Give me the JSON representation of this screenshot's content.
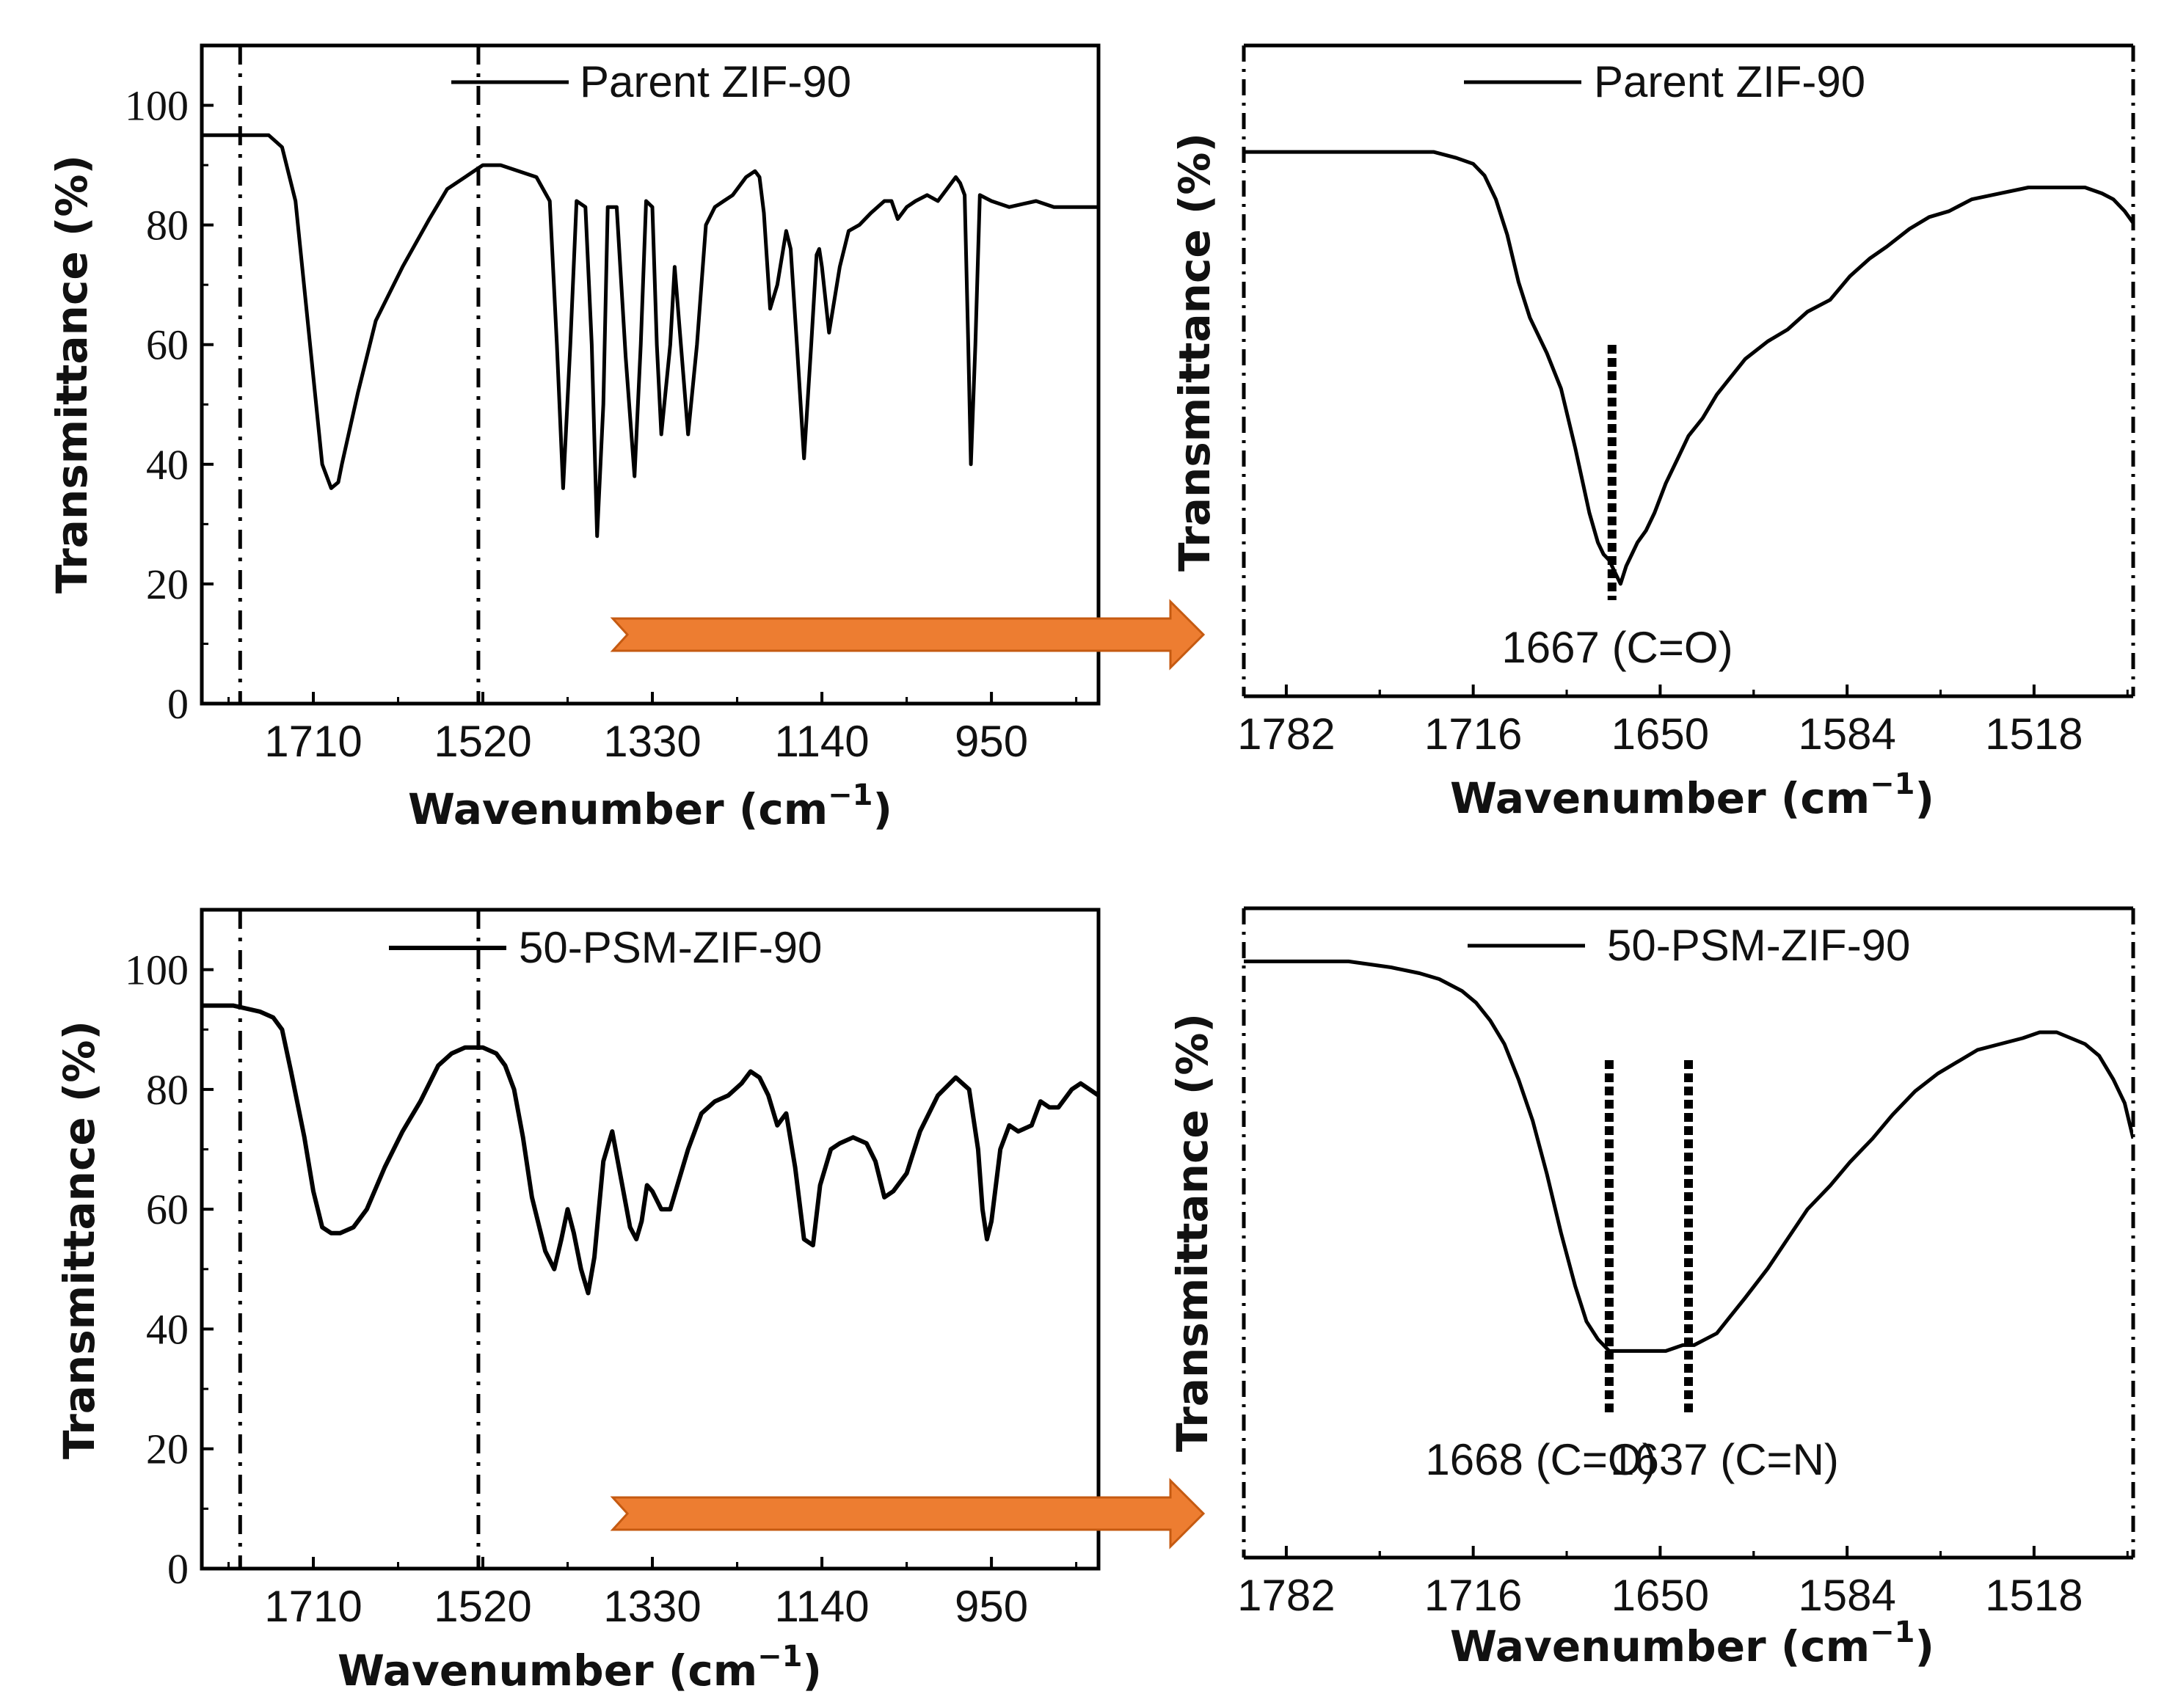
{
  "colors": {
    "line": "#000000",
    "arrow": "#ED7D31",
    "arrow_stroke": "#C55A11"
  },
  "chart_data": [
    {
      "id": "a",
      "type": "line",
      "xlabel": "Wavenumber (cm",
      "xlabel_sup": "−1",
      "xlabel_close": ")",
      "ylabel": "Transmittance (%)",
      "xlim": [
        1835,
        830
      ],
      "ylim": [
        0,
        110
      ],
      "xticks": [
        1710,
        1520,
        1330,
        1140,
        950
      ],
      "yticks": [
        0,
        20,
        40,
        60,
        80,
        100
      ],
      "vlines": [
        1792,
        1525
      ],
      "legend": "Parent ZIF-90",
      "series": [
        {
          "name": "Parent ZIF-90",
          "x": [
            1835,
            1795,
            1760,
            1745,
            1730,
            1715,
            1700,
            1690,
            1682,
            1678,
            1672,
            1660,
            1640,
            1610,
            1580,
            1560,
            1540,
            1520,
            1500,
            1480,
            1460,
            1445,
            1437,
            1430,
            1422,
            1415,
            1405,
            1398,
            1392,
            1385,
            1380,
            1370,
            1360,
            1350,
            1343,
            1337,
            1330,
            1325,
            1320,
            1310,
            1305,
            1298,
            1290,
            1280,
            1270,
            1260,
            1250,
            1240,
            1225,
            1215,
            1210,
            1205,
            1198,
            1190,
            1180,
            1175,
            1168,
            1160,
            1152,
            1146,
            1143,
            1140,
            1132,
            1120,
            1110,
            1098,
            1085,
            1070,
            1062,
            1055,
            1045,
            1035,
            1022,
            1010,
            1000,
            990,
            985,
            980,
            976,
            973,
            968,
            963,
            950,
            930,
            900,
            880,
            860,
            830
          ],
          "y": [
            95,
            95,
            95,
            93,
            84,
            62,
            40,
            36,
            37,
            40,
            44,
            52,
            64,
            73,
            81,
            86,
            88,
            90,
            90,
            89,
            88,
            84,
            60,
            36,
            60,
            84,
            83,
            60,
            28,
            50,
            83,
            83,
            58,
            38,
            60,
            84,
            83,
            60,
            45,
            60,
            73,
            60,
            45,
            60,
            80,
            83,
            84,
            85,
            88,
            89,
            88,
            82,
            66,
            70,
            79,
            76,
            60,
            41,
            60,
            75,
            76,
            73,
            62,
            73,
            79,
            80,
            82,
            84,
            84,
            81,
            83,
            84,
            85,
            84,
            86,
            88,
            87,
            85,
            60,
            40,
            60,
            85,
            84,
            83,
            84,
            83,
            83,
            83
          ]
        }
      ]
    },
    {
      "id": "b",
      "type": "line",
      "xlabel": "Wavenumber (cm",
      "xlabel_sup": "−1",
      "xlabel_close": ")",
      "ylabel": "Transmittance (%)",
      "xlim": [
        1797,
        1483
      ],
      "ylim": [
        0,
        110
      ],
      "xticks": [
        1782,
        1716,
        1650,
        1584,
        1518
      ],
      "legend": "Parent ZIF-90",
      "annotations": [
        {
          "text": "1667 (C=O)",
          "x": 1667
        }
      ],
      "series": [
        {
          "name": "Parent ZIF-90",
          "x": [
            1797,
            1780,
            1760,
            1745,
            1730,
            1722,
            1716,
            1712,
            1708,
            1704,
            1700,
            1696,
            1690,
            1685,
            1680,
            1675,
            1672,
            1670,
            1668,
            1666,
            1664,
            1662,
            1660,
            1658,
            1655,
            1652,
            1648,
            1644,
            1640,
            1635,
            1630,
            1625,
            1620,
            1612,
            1605,
            1598,
            1590,
            1583,
            1576,
            1570,
            1562,
            1555,
            1548,
            1540,
            1530,
            1520,
            1512,
            1506,
            1500,
            1494,
            1490,
            1486,
            1483
          ],
          "y": [
            92,
            92,
            92,
            92,
            92,
            91,
            90,
            88,
            84,
            78,
            70,
            64,
            58,
            52,
            42,
            31,
            26,
            24,
            23,
            21,
            19,
            22,
            24,
            26,
            28,
            31,
            36,
            40,
            44,
            47,
            51,
            54,
            57,
            60,
            62,
            65,
            67,
            71,
            74,
            76,
            79,
            81,
            82,
            84,
            85,
            86,
            86,
            86,
            86,
            85,
            84,
            82,
            80
          ]
        }
      ]
    },
    {
      "id": "c",
      "type": "line",
      "xlabel": "Wavenumber (cm",
      "xlabel_sup": "−1",
      "xlabel_close": ")",
      "ylabel": "Transmittance (%)",
      "xlim": [
        1835,
        830
      ],
      "ylim": [
        0,
        110
      ],
      "xticks": [
        1710,
        1520,
        1330,
        1140,
        950
      ],
      "yticks": [
        0,
        20,
        40,
        60,
        80,
        100
      ],
      "vlines": [
        1792,
        1525
      ],
      "legend": "50-PSM-ZIF-90",
      "series": [
        {
          "name": "50-PSM-ZIF-90",
          "x": [
            1835,
            1800,
            1770,
            1755,
            1745,
            1735,
            1720,
            1710,
            1700,
            1690,
            1680,
            1665,
            1650,
            1630,
            1610,
            1590,
            1570,
            1555,
            1540,
            1520,
            1505,
            1495,
            1485,
            1475,
            1465,
            1450,
            1440,
            1432,
            1425,
            1418,
            1410,
            1402,
            1395,
            1390,
            1385,
            1375,
            1365,
            1355,
            1348,
            1342,
            1336,
            1330,
            1320,
            1310,
            1300,
            1290,
            1275,
            1260,
            1245,
            1230,
            1220,
            1210,
            1200,
            1190,
            1185,
            1180,
            1170,
            1160,
            1150,
            1142,
            1130,
            1120,
            1105,
            1090,
            1080,
            1070,
            1060,
            1045,
            1030,
            1010,
            990,
            975,
            965,
            960,
            955,
            950,
            940,
            930,
            920,
            905,
            895,
            885,
            875,
            860,
            850,
            840,
            830
          ],
          "y": [
            94,
            94,
            93,
            92,
            90,
            83,
            72,
            63,
            57,
            56,
            56,
            57,
            60,
            67,
            73,
            78,
            84,
            86,
            87,
            87,
            86,
            84,
            80,
            72,
            62,
            53,
            50,
            55,
            60,
            56,
            50,
            46,
            52,
            60,
            68,
            73,
            65,
            57,
            55,
            58,
            64,
            63,
            60,
            60,
            65,
            70,
            76,
            78,
            79,
            81,
            83,
            82,
            79,
            74,
            75,
            76,
            67,
            55,
            54,
            64,
            70,
            71,
            72,
            71,
            68,
            62,
            63,
            66,
            73,
            79,
            82,
            80,
            70,
            60,
            55,
            58,
            70,
            74,
            73,
            74,
            78,
            77,
            77,
            80,
            81,
            80,
            79
          ]
        }
      ]
    },
    {
      "id": "d",
      "type": "line",
      "xlabel": "Wavenumber (cm",
      "xlabel_sup": "−1",
      "xlabel_close": ")",
      "ylabel": "Transmittance (%)",
      "xlim": [
        1797,
        1483
      ],
      "ylim": [
        0,
        110
      ],
      "xticks": [
        1782,
        1716,
        1650,
        1584,
        1518
      ],
      "legend": "50-PSM-ZIF-90",
      "annotations": [
        {
          "text": "1668 (C=O)",
          "x": 1668
        },
        {
          "text": "1637 (C=N)",
          "x": 1640
        }
      ],
      "series": [
        {
          "name": "50-PSM-ZIF-90",
          "x": [
            1797,
            1780,
            1760,
            1745,
            1735,
            1728,
            1720,
            1715,
            1710,
            1705,
            1700,
            1695,
            1690,
            1685,
            1680,
            1676,
            1672,
            1668,
            1662,
            1655,
            1648,
            1642,
            1638,
            1634,
            1630,
            1625,
            1620,
            1612,
            1605,
            1598,
            1590,
            1583,
            1575,
            1568,
            1560,
            1552,
            1545,
            1538,
            1530,
            1522,
            1516,
            1510,
            1505,
            1500,
            1495,
            1490,
            1486,
            1483
          ],
          "y": [
            101,
            101,
            101,
            100,
            99,
            98,
            96,
            94,
            91,
            87,
            81,
            74,
            65,
            55,
            46,
            40,
            37,
            35,
            35,
            35,
            35,
            36,
            36,
            37,
            38,
            41,
            44,
            49,
            54,
            59,
            63,
            67,
            71,
            75,
            79,
            82,
            84,
            86,
            87,
            88,
            89,
            89,
            88,
            87,
            85,
            81,
            77,
            71
          ]
        }
      ]
    }
  ]
}
